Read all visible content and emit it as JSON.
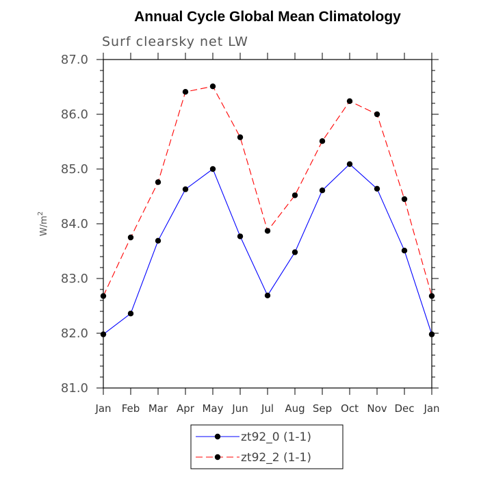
{
  "chart_data": {
    "type": "line",
    "title": "Annual Cycle Global Mean Climatology",
    "subtitle": "Surf clearsky net LW",
    "ylabel_base": "W/m",
    "ylabel_sup": "2",
    "ylim": [
      81.0,
      87.0
    ],
    "yticks": [
      "81.0",
      "82.0",
      "83.0",
      "84.0",
      "85.0",
      "86.0",
      "87.0"
    ],
    "categories": [
      "Jan",
      "Feb",
      "Mar",
      "Apr",
      "May",
      "Jun",
      "Jul",
      "Aug",
      "Sep",
      "Oct",
      "Nov",
      "Dec",
      "Jan"
    ],
    "series": [
      {
        "name": "zt92_0 (1-1)",
        "color": "#0000ff",
        "dash": "solid",
        "values": [
          81.98,
          82.36,
          83.69,
          84.63,
          85.0,
          83.77,
          82.69,
          83.48,
          84.61,
          85.09,
          84.64,
          83.51,
          81.98
        ]
      },
      {
        "name": "zt92_2 (1-1)",
        "color": "#ff0000",
        "dash": "dashed",
        "values": [
          82.68,
          83.75,
          84.76,
          86.41,
          86.51,
          85.58,
          83.87,
          84.52,
          85.51,
          86.24,
          86.0,
          84.45,
          82.68
        ]
      }
    ],
    "legend_position": "bottom-center",
    "grid": false
  }
}
